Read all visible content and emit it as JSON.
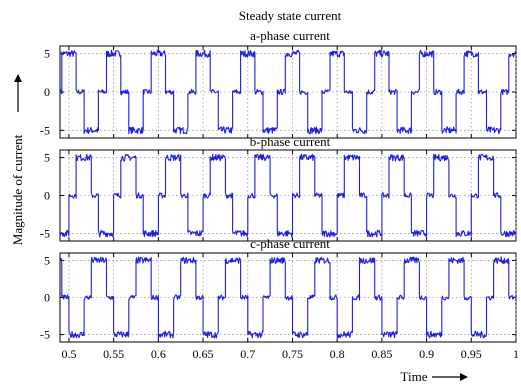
{
  "chart_data": {
    "type": "line",
    "title": "Steady state current",
    "ylabel": "Magnitude of current",
    "xlabel": "Time",
    "xlim": [
      0.49,
      1.0
    ],
    "ylim": [
      -6,
      6
    ],
    "grid": true,
    "x_ticks": [
      0.5,
      0.55,
      0.6,
      0.65,
      0.7,
      0.75,
      0.8,
      0.85,
      0.9,
      0.95,
      1.0
    ],
    "x_tick_labels": [
      "0.5",
      "0.55",
      "0.6",
      "0.65",
      "0.7",
      "0.75",
      "0.8",
      "0.85",
      "0.9",
      "0.95",
      "1"
    ],
    "y_ticks": [
      -5,
      0,
      5
    ],
    "y_tick_labels": [
      "-5",
      "0",
      "5"
    ],
    "line_color": "#1f1fd6",
    "period": 0.05,
    "panels": [
      {
        "subtitle": "a-phase current",
        "phase_offset": 0.0,
        "waveform": "six-step quasi-square: +5 for 0.017 s, 0 for 0.008 s, -5 for 0.017 s, 0 for 0.008 s",
        "x": [
          0.49,
          0.492,
          0.492,
          0.508,
          0.508,
          0.517,
          0.517,
          0.533,
          0.533,
          0.542,
          0.542,
          0.558,
          0.558,
          0.567,
          0.567,
          0.583,
          0.583,
          0.592,
          0.592,
          0.608,
          0.608,
          0.617,
          0.617,
          0.633,
          0.633,
          0.642,
          0.642,
          0.658,
          0.658,
          0.667,
          0.667,
          0.683,
          0.683,
          0.692,
          0.692,
          0.708,
          0.708,
          0.717,
          0.717,
          0.733,
          0.733,
          0.742,
          0.742,
          0.758,
          0.758,
          0.767,
          0.767,
          0.783,
          0.783,
          0.792,
          0.792,
          0.808,
          0.808,
          0.817,
          0.817,
          0.833,
          0.833,
          0.842,
          0.842,
          0.858,
          0.858,
          0.867,
          0.867,
          0.883,
          0.883,
          0.892,
          0.892,
          0.908,
          0.908,
          0.917,
          0.917,
          0.933,
          0.933,
          0.942,
          0.942,
          0.958,
          0.958,
          0.967,
          0.967,
          0.983,
          0.983,
          0.992,
          0.992,
          1.0
        ],
        "y": [
          0,
          0,
          5,
          5,
          0,
          0,
          -5,
          -5,
          0,
          0,
          5,
          5,
          0,
          0,
          -5,
          -5,
          0,
          0,
          5,
          5,
          0,
          0,
          -5,
          -5,
          0,
          0,
          5,
          5,
          0,
          0,
          -5,
          -5,
          0,
          0,
          5,
          5,
          0,
          0,
          -5,
          -5,
          0,
          0,
          5,
          5,
          0,
          0,
          -5,
          -5,
          0,
          0,
          5,
          5,
          0,
          0,
          -5,
          -5,
          0,
          0,
          5,
          5,
          0,
          0,
          -5,
          -5,
          0,
          0,
          5,
          5,
          0,
          0,
          -5,
          -5,
          0,
          0,
          5,
          5,
          0,
          0,
          -5,
          -5,
          0,
          0,
          5,
          5
        ]
      },
      {
        "subtitle": "b-phase current",
        "phase_offset": 0.0167,
        "waveform": "six-step quasi-square lagging a-phase by 120 degrees",
        "x": [
          0.49,
          0.5,
          0.5,
          0.508,
          0.508,
          0.525,
          0.525,
          0.533,
          0.533,
          0.55,
          0.55,
          0.558,
          0.558,
          0.575,
          0.575,
          0.583,
          0.583,
          0.6,
          0.6,
          0.608,
          0.608,
          0.625,
          0.625,
          0.633,
          0.633,
          0.65,
          0.65,
          0.658,
          0.658,
          0.675,
          0.675,
          0.683,
          0.683,
          0.7,
          0.7,
          0.708,
          0.708,
          0.725,
          0.725,
          0.733,
          0.733,
          0.75,
          0.75,
          0.758,
          0.758,
          0.775,
          0.775,
          0.783,
          0.783,
          0.8,
          0.8,
          0.808,
          0.808,
          0.825,
          0.825,
          0.833,
          0.833,
          0.85,
          0.85,
          0.858,
          0.858,
          0.875,
          0.875,
          0.883,
          0.883,
          0.9,
          0.9,
          0.908,
          0.908,
          0.925,
          0.925,
          0.933,
          0.933,
          0.95,
          0.95,
          0.958,
          0.958,
          0.975,
          0.975,
          0.983,
          0.983,
          1.0
        ],
        "y": [
          -5,
          -5,
          0,
          0,
          5,
          5,
          0,
          0,
          -5,
          -5,
          0,
          0,
          5,
          5,
          0,
          0,
          -5,
          -5,
          0,
          0,
          5,
          5,
          0,
          0,
          -5,
          -5,
          0,
          0,
          5,
          5,
          0,
          0,
          -5,
          -5,
          0,
          0,
          5,
          5,
          0,
          0,
          -5,
          -5,
          0,
          0,
          5,
          5,
          0,
          0,
          -5,
          -5,
          0,
          0,
          5,
          5,
          0,
          0,
          -5,
          -5,
          0,
          0,
          5,
          5,
          0,
          0,
          -5,
          -5,
          0,
          0,
          5,
          5,
          0,
          0,
          -5,
          -5,
          0,
          0,
          5,
          5,
          0,
          0,
          -5,
          -5
        ]
      },
      {
        "subtitle": "c-phase current",
        "phase_offset": 0.0333,
        "waveform": "six-step quasi-square lagging a-phase by 240 degrees",
        "x": [
          0.49,
          0.492,
          0.492,
          0.5,
          0.5,
          0.517,
          0.517,
          0.525,
          0.525,
          0.542,
          0.542,
          0.55,
          0.55,
          0.567,
          0.567,
          0.575,
          0.575,
          0.592,
          0.592,
          0.6,
          0.6,
          0.617,
          0.617,
          0.625,
          0.625,
          0.642,
          0.642,
          0.65,
          0.65,
          0.667,
          0.667,
          0.675,
          0.675,
          0.692,
          0.692,
          0.7,
          0.7,
          0.717,
          0.717,
          0.725,
          0.725,
          0.742,
          0.742,
          0.75,
          0.75,
          0.767,
          0.767,
          0.775,
          0.775,
          0.792,
          0.792,
          0.8,
          0.8,
          0.817,
          0.817,
          0.825,
          0.825,
          0.842,
          0.842,
          0.85,
          0.85,
          0.867,
          0.867,
          0.875,
          0.875,
          0.892,
          0.892,
          0.9,
          0.9,
          0.917,
          0.917,
          0.925,
          0.925,
          0.942,
          0.942,
          0.95,
          0.95,
          0.967,
          0.967,
          0.975,
          0.975,
          0.992,
          0.992,
          1.0
        ],
        "y": [
          5,
          5,
          0,
          0,
          -5,
          -5,
          0,
          0,
          5,
          5,
          0,
          0,
          -5,
          -5,
          0,
          0,
          5,
          5,
          0,
          0,
          -5,
          -5,
          0,
          0,
          5,
          5,
          0,
          0,
          -5,
          -5,
          0,
          0,
          5,
          5,
          0,
          0,
          -5,
          -5,
          0,
          0,
          5,
          5,
          0,
          0,
          -5,
          -5,
          0,
          0,
          5,
          5,
          0,
          0,
          -5,
          -5,
          0,
          0,
          5,
          5,
          0,
          0,
          -5,
          -5,
          0,
          0,
          5,
          5,
          0,
          0,
          -5,
          -5,
          0,
          0,
          5,
          5,
          0,
          0,
          -5,
          -5,
          0,
          0,
          5,
          5,
          0,
          0
        ]
      }
    ]
  }
}
